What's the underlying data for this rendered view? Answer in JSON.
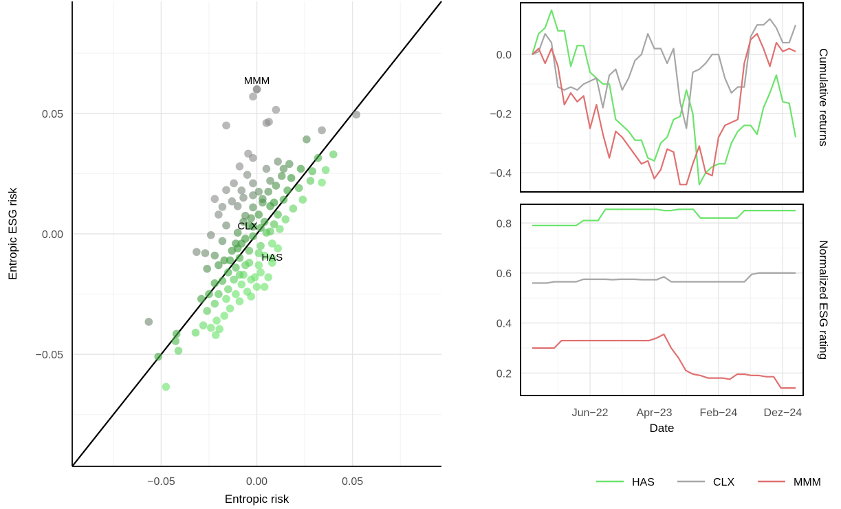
{
  "chart_data": [
    {
      "type": "scatter",
      "xlabel": "Entropic risk",
      "ylabel": "Entropic ESG risk",
      "xlim": [
        -0.0965,
        0.0965
      ],
      "ylim": [
        -0.0965,
        0.0965
      ],
      "xticks": [
        -0.05,
        0.0,
        0.05
      ],
      "xtick_labels": [
        "−0.05",
        "0.00",
        "0.05"
      ],
      "yticks": [
        -0.05,
        0.0,
        0.05
      ],
      "ytick_labels": [
        "−0.05",
        "0.00",
        "0.05"
      ],
      "reference_line": "y = x",
      "grid": true,
      "color_gradient": [
        "#6ce46c",
        "#3a9a3a",
        "#7a8a7a",
        "#8e8e8e"
      ],
      "labeled_points": [
        {
          "label": "MMM",
          "x": 0.0,
          "y": 0.06
        },
        {
          "label": "CLX",
          "x": -0.002,
          "y": 0.003
        },
        {
          "label": "HAS",
          "x": 0.008,
          "y": -0.01
        }
      ],
      "points": [
        [
          0.052,
          0.0495
        ],
        [
          0.0,
          0.06
        ],
        [
          -0.002,
          0.057
        ],
        [
          0.01,
          0.0515
        ],
        [
          0.005,
          0.046
        ],
        [
          0.0063,
          0.0465
        ],
        [
          -0.016,
          0.045
        ],
        [
          0.034,
          0.043
        ],
        [
          0.026,
          0.0392
        ],
        [
          0.04,
          0.033
        ],
        [
          0.032,
          0.0315
        ],
        [
          -0.0045,
          0.0333
        ],
        [
          -0.002,
          0.0315
        ],
        [
          0.011,
          0.03
        ],
        [
          0.017,
          0.029
        ],
        [
          0.023,
          0.027
        ],
        [
          0.029,
          0.026
        ],
        [
          -0.009,
          0.028
        ],
        [
          0.005,
          0.027
        ],
        [
          0.036,
          0.0265
        ],
        [
          0.018,
          0.0232
        ],
        [
          -0.005,
          0.0245
        ],
        [
          0.013,
          0.024
        ],
        [
          0.034,
          0.0213
        ],
        [
          0.028,
          0.022
        ],
        [
          0.022,
          0.019
        ],
        [
          0.01,
          0.02
        ],
        [
          -0.002,
          0.021
        ],
        [
          -0.012,
          0.021
        ],
        [
          -0.016,
          0.0182
        ],
        [
          0.001,
          0.0175
        ],
        [
          0.006,
          0.0175
        ],
        [
          0.016,
          0.018
        ],
        [
          0.024,
          0.0142
        ],
        [
          0.014,
          0.0142
        ],
        [
          0.003,
          0.0145
        ],
        [
          -0.007,
          0.015
        ],
        [
          -0.013,
          0.0135
        ],
        [
          -0.022,
          0.0145
        ],
        [
          -0.018,
          0.0112
        ],
        [
          -0.01,
          0.0115
        ],
        [
          -0.002,
          0.011
        ],
        [
          0.007,
          0.0115
        ],
        [
          0.011,
          0.008
        ],
        [
          0.001,
          0.008
        ],
        [
          -0.006,
          0.0075
        ],
        [
          -0.02,
          0.008
        ],
        [
          0.004,
          0.005
        ],
        [
          -0.004,
          0.0035
        ],
        [
          0.009,
          0.004
        ],
        [
          0.012,
          0.002
        ],
        [
          -0.016,
          0.0035
        ],
        [
          -0.01,
          0.0005
        ],
        [
          0.005,
          0.0005
        ],
        [
          -0.002,
          -0.001
        ],
        [
          -0.024,
          -0.0005
        ],
        [
          -0.018,
          -0.003
        ],
        [
          -0.008,
          -0.004
        ],
        [
          0.008,
          -0.004
        ],
        [
          0.011,
          -0.006
        ],
        [
          0.002,
          -0.005
        ],
        [
          -0.004,
          -0.007
        ],
        [
          -0.013,
          -0.007
        ],
        [
          -0.027,
          -0.008
        ],
        [
          -0.0315,
          -0.0075
        ],
        [
          -0.022,
          -0.009
        ],
        [
          -0.017,
          -0.011
        ],
        [
          -0.009,
          -0.01
        ],
        [
          0.004,
          -0.009
        ],
        [
          0.008,
          -0.012
        ],
        [
          0.001,
          -0.013
        ],
        [
          -0.006,
          -0.013
        ],
        [
          -0.011,
          -0.014
        ],
        [
          -0.02,
          -0.013
        ],
        [
          -0.026,
          -0.0145
        ],
        [
          -0.015,
          -0.016
        ],
        [
          -0.007,
          -0.017
        ],
        [
          0.002,
          -0.016
        ],
        [
          0.006,
          -0.018
        ],
        [
          -0.003,
          -0.019
        ],
        [
          -0.012,
          -0.019
        ],
        [
          -0.018,
          -0.0195
        ],
        [
          -0.022,
          -0.0205
        ],
        [
          -0.008,
          -0.021
        ],
        [
          0.0,
          -0.022
        ],
        [
          0.004,
          -0.022
        ],
        [
          -0.015,
          -0.023
        ],
        [
          -0.005,
          -0.024
        ],
        [
          -0.011,
          -0.025
        ],
        [
          -0.02,
          -0.025
        ],
        [
          -0.025,
          -0.025
        ],
        [
          -0.003,
          -0.026
        ],
        [
          -0.016,
          -0.027
        ],
        [
          -0.009,
          -0.028
        ],
        [
          -0.029,
          -0.027
        ],
        [
          -0.022,
          -0.029
        ],
        [
          -0.014,
          -0.031
        ],
        [
          -0.026,
          -0.032
        ],
        [
          -0.017,
          -0.034
        ],
        [
          -0.021,
          -0.036
        ],
        [
          -0.024,
          -0.039
        ],
        [
          -0.028,
          -0.038
        ],
        [
          -0.0195,
          -0.0395
        ],
        [
          -0.032,
          -0.041
        ],
        [
          -0.0215,
          -0.042
        ],
        [
          -0.042,
          -0.0415
        ],
        [
          -0.0425,
          -0.0445
        ],
        [
          -0.041,
          -0.0485
        ],
        [
          -0.0565,
          -0.0365
        ],
        [
          -0.0515,
          -0.051
        ],
        [
          -0.0475,
          -0.0635
        ],
        [
          -0.007,
          0.005
        ],
        [
          -0.003,
          0.0065
        ],
        [
          0.002,
          0.0025
        ],
        [
          0.007,
          0.001
        ],
        [
          -0.011,
          -0.004
        ],
        [
          -0.006,
          -0.002
        ],
        [
          0.001,
          -0.008
        ],
        [
          -0.004,
          -0.012
        ],
        [
          -0.009,
          -0.017
        ],
        [
          -0.001,
          -0.018
        ],
        [
          -0.014,
          -0.011
        ],
        [
          -0.01,
          -0.006
        ],
        [
          0.003,
          0.013
        ],
        [
          -0.002,
          0.016
        ],
        [
          0.009,
          0.013
        ],
        [
          0.019,
          0.0105
        ],
        [
          0.015,
          0.006
        ],
        [
          -0.008,
          0.018
        ],
        [
          0.014,
          0.027
        ],
        [
          0.007,
          0.022
        ]
      ]
    },
    {
      "type": "line",
      "ylabel": "Cumulative returns",
      "ylim": [
        -0.465,
        0.175
      ],
      "yticks": [
        -0.4,
        -0.2,
        0.0
      ],
      "ytick_labels": [
        "−0.4",
        "−0.2",
        "0.0"
      ],
      "grid": true,
      "series": [
        {
          "name": "HAS",
          "color": "#6ce46c",
          "values": [
            0.0,
            0.07,
            0.09,
            0.15,
            0.08,
            0.08,
            -0.04,
            0.03,
            0.03,
            -0.06,
            -0.08,
            -0.1,
            -0.1,
            -0.22,
            -0.24,
            -0.26,
            -0.29,
            -0.29,
            -0.35,
            -0.36,
            -0.3,
            -0.28,
            -0.22,
            -0.21,
            -0.12,
            -0.2,
            -0.44,
            -0.4,
            -0.38,
            -0.37,
            -0.37,
            -0.3,
            -0.26,
            -0.24,
            -0.24,
            -0.27,
            -0.18,
            -0.13,
            -0.07,
            -0.16,
            -0.165,
            -0.28
          ]
        },
        {
          "name": "CLX",
          "color": "#a6a6a6",
          "values": [
            0.0,
            0.01,
            0.07,
            0.04,
            -0.11,
            -0.12,
            -0.11,
            -0.12,
            -0.1,
            -0.09,
            -0.08,
            -0.18,
            -0.07,
            -0.05,
            -0.12,
            -0.08,
            -0.02,
            0.0,
            0.07,
            0.02,
            0.02,
            -0.03,
            0.02,
            -0.16,
            -0.25,
            -0.06,
            -0.05,
            -0.03,
            0.0,
            0.0,
            -0.08,
            -0.13,
            -0.11,
            -0.11,
            0.06,
            0.1,
            0.1,
            0.12,
            0.09,
            0.04,
            0.04,
            0.1
          ]
        },
        {
          "name": "MMM",
          "color": "#e07070",
          "values": [
            0.0,
            0.02,
            -0.03,
            0.02,
            -0.04,
            -0.17,
            -0.13,
            -0.16,
            -0.14,
            -0.25,
            -0.17,
            -0.27,
            -0.35,
            -0.26,
            -0.28,
            -0.31,
            -0.34,
            -0.37,
            -0.36,
            -0.42,
            -0.39,
            -0.32,
            -0.33,
            -0.44,
            -0.44,
            -0.37,
            -0.31,
            -0.4,
            -0.41,
            -0.28,
            -0.24,
            -0.23,
            -0.22,
            -0.03,
            0.05,
            0.07,
            0.02,
            -0.04,
            0.04,
            0.01,
            0.02,
            0.01
          ]
        }
      ]
    },
    {
      "type": "line",
      "xlabel": "Date",
      "ylabel": "Normalized ESG rating",
      "ylim": [
        0.11,
        0.875
      ],
      "yticks": [
        0.2,
        0.4,
        0.6,
        0.8
      ],
      "ytick_labels": [
        "0.2",
        "0.4",
        "0.6",
        "0.8"
      ],
      "xlim": [
        "2021-09",
        "2025-02"
      ],
      "xticks": [
        "2022-06",
        "2023-04",
        "2024-02",
        "2024-12"
      ],
      "xtick_labels": [
        "Jun−22",
        "Apr−23",
        "Feb−24",
        "Dez−24"
      ],
      "grid": true,
      "series": [
        {
          "name": "HAS",
          "color": "#6ce46c",
          "values": [
            0.79,
            0.79,
            0.79,
            0.79,
            0.79,
            0.79,
            0.79,
            0.81,
            0.81,
            0.81,
            0.855,
            0.855,
            0.855,
            0.855,
            0.855,
            0.855,
            0.855,
            0.855,
            0.85,
            0.85,
            0.855,
            0.855,
            0.855,
            0.82,
            0.82,
            0.82,
            0.82,
            0.82,
            0.82,
            0.85,
            0.85,
            0.85,
            0.85,
            0.85,
            0.85,
            0.85,
            0.85
          ]
        },
        {
          "name": "CLX",
          "color": "#a6a6a6",
          "values": [
            0.56,
            0.56,
            0.56,
            0.565,
            0.565,
            0.565,
            0.565,
            0.575,
            0.575,
            0.575,
            0.575,
            0.573,
            0.575,
            0.575,
            0.575,
            0.573,
            0.573,
            0.573,
            0.585,
            0.565,
            0.565,
            0.565,
            0.565,
            0.565,
            0.565,
            0.565,
            0.565,
            0.565,
            0.565,
            0.565,
            0.595,
            0.6,
            0.6,
            0.6,
            0.6,
            0.6,
            0.6
          ]
        },
        {
          "name": "MMM",
          "color": "#e07070",
          "values": [
            0.3,
            0.3,
            0.3,
            0.3,
            0.33,
            0.33,
            0.33,
            0.33,
            0.33,
            0.33,
            0.33,
            0.33,
            0.33,
            0.33,
            0.33,
            0.33,
            0.33,
            0.34,
            0.355,
            0.3,
            0.26,
            0.21,
            0.195,
            0.19,
            0.18,
            0.18,
            0.18,
            0.175,
            0.195,
            0.195,
            0.19,
            0.19,
            0.185,
            0.185,
            0.14,
            0.14,
            0.14
          ]
        }
      ]
    }
  ],
  "legend": {
    "position": "bottom-right",
    "items": [
      {
        "label": "HAS",
        "color": "#6ce46c"
      },
      {
        "label": "CLX",
        "color": "#a6a6a6"
      },
      {
        "label": "MMM",
        "color": "#e07070"
      }
    ]
  }
}
